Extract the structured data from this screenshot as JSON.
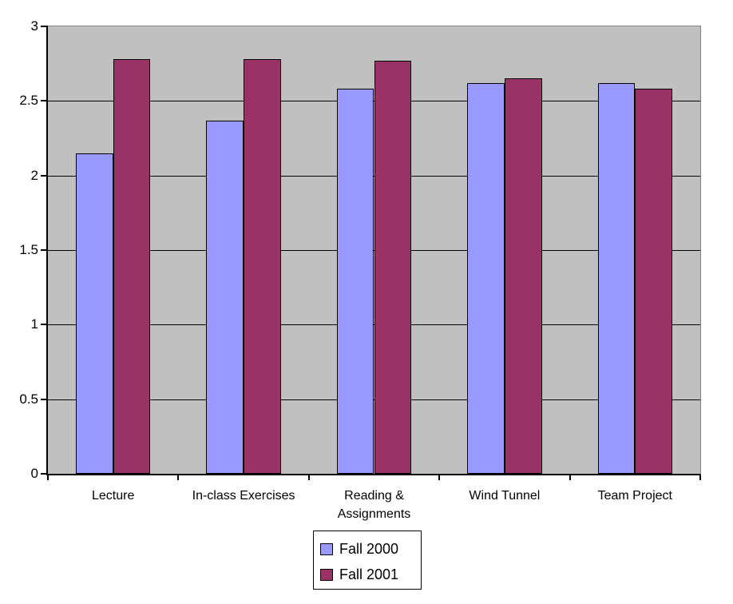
{
  "chart_data": {
    "type": "bar",
    "categories": [
      "Lecture",
      "In-class Exercises",
      "Reading & Assignments",
      "Wind Tunnel",
      "Team Project"
    ],
    "series": [
      {
        "name": "Fall 2000",
        "color": "#9999FF",
        "values": [
          2.15,
          2.37,
          2.58,
          2.62,
          2.62
        ]
      },
      {
        "name": "Fall 2001",
        "color": "#993366",
        "values": [
          2.78,
          2.78,
          2.77,
          2.65,
          2.58
        ]
      }
    ],
    "xlabel": "",
    "ylabel": "",
    "ylim": [
      0,
      3
    ],
    "ytick_values": [
      0,
      0.5,
      1,
      1.5,
      2,
      2.5,
      3
    ],
    "ytick_labels": [
      "0",
      "0.5",
      "1",
      "1.5",
      "2",
      "2.5",
      "3"
    ],
    "grid": true,
    "legend_position": "bottom-center",
    "colors": {
      "plot_background": "#C0C0C0",
      "plot_border": "#848284",
      "axis": "#000000",
      "gridline": "#000000",
      "text": "#000000",
      "legend_background": "#FFFFFF"
    }
  }
}
